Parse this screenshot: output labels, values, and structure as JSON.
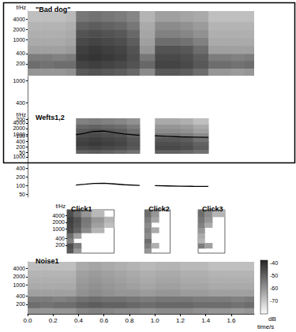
{
  "chart_data": [
    {
      "type": "heatmap",
      "title": "\"Bad dog\"",
      "y_label": "f/Hz",
      "log": "y",
      "tick_labels": "y",
      "xlim": [
        0,
        1.78
      ],
      "ylim": [
        90,
        7000
      ],
      "yticks": [
        200,
        400,
        1000,
        2000,
        4000
      ],
      "cells": {
        "t": [
          0,
          0.1,
          0.2,
          0.3,
          0.38,
          0.48,
          0.58,
          0.68,
          0.78,
          0.88,
          1.0,
          1.1,
          1.2,
          1.3,
          1.42,
          1.5,
          1.6,
          1.7,
          1.78
        ],
        "f": [
          90,
          150,
          250,
          400,
          700,
          1200,
          2000,
          3500,
          7000
        ],
        "db": [
          [
            -60,
            -60,
            -60,
            -59,
            -48,
            -47,
            -48,
            -49,
            -51,
            -58,
            -48,
            -48,
            -49,
            -52,
            -60,
            -60,
            -61,
            -60
          ],
          [
            -52,
            -53,
            -52,
            -52,
            -44,
            -43,
            -44,
            -45,
            -47,
            -51,
            -44,
            -44,
            -45,
            -48,
            -52,
            -52,
            -53,
            -52
          ],
          [
            -55,
            -55,
            -56,
            -55,
            -42,
            -41,
            -42,
            -43,
            -46,
            -54,
            -45,
            -45,
            -46,
            -49,
            -55,
            -55,
            -56,
            -55
          ],
          [
            -62,
            -62,
            -62,
            -61,
            -43,
            -42,
            -43,
            -44,
            -47,
            -60,
            -47,
            -47,
            -48,
            -52,
            -62,
            -62,
            -62,
            -62
          ],
          [
            -64,
            -64,
            -64,
            -63,
            -45,
            -44,
            -45,
            -46,
            -49,
            -62,
            -52,
            -52,
            -53,
            -56,
            -64,
            -64,
            -64,
            -64
          ],
          [
            -65,
            -65,
            -65,
            -64,
            -47,
            -46,
            -47,
            -48,
            -51,
            -63,
            -56,
            -56,
            -57,
            -59,
            -65,
            -65,
            -65,
            -65
          ],
          [
            -66,
            -66,
            -66,
            -65,
            -50,
            -49,
            -50,
            -51,
            -54,
            -64,
            -58,
            -58,
            -59,
            -61,
            -66,
            -66,
            -66,
            -66
          ],
          [
            -68,
            -68,
            -68,
            -67,
            -54,
            -53,
            -54,
            -55,
            -57,
            -66,
            -62,
            -62,
            -63,
            -64,
            -68,
            -68,
            -68,
            -68
          ]
        ]
      }
    },
    {
      "type": "line",
      "log": "y",
      "tick_labels": "y",
      "xlim": [
        0,
        1.78
      ],
      "ylim": [
        40,
        1200
      ],
      "yticks": [
        50,
        100,
        200,
        400,
        1000
      ],
      "series": [
        {
          "color": "#000000",
          "x": [
            0.38,
            0.45,
            0.52,
            0.6,
            0.68,
            0.76,
            0.88
          ],
          "values": [
            105,
            112,
            120,
            122,
            115,
            108,
            102
          ]
        },
        {
          "color": "#000000",
          "x": [
            1.0,
            1.1,
            1.2,
            1.3,
            1.42
          ],
          "values": [
            100,
            98,
            96,
            95,
            94
          ]
        }
      ]
    },
    {
      "type": "heatmap",
      "title": "Wefts1,2",
      "y_label": "f/Hz",
      "log": "y",
      "tick_labels": "y",
      "xlim": [
        0,
        1.78
      ],
      "ylim": [
        90,
        7000
      ],
      "yticks": [
        200,
        400,
        1000,
        2000,
        4000
      ],
      "cells": [
        {
          "t": [
            0.38,
            0.48,
            0.58,
            0.68,
            0.78,
            0.88
          ],
          "f": [
            90,
            150,
            250,
            400,
            700,
            1200,
            2000,
            3500,
            7000
          ],
          "db": [
            [
              -50,
              -49,
              -50,
              -51,
              -53
            ],
            [
              -45,
              -44,
              -45,
              -46,
              -48
            ],
            [
              -43,
              -42,
              -43,
              -44,
              -47
            ],
            [
              -44,
              -43,
              -44,
              -45,
              -48
            ],
            [
              -46,
              -45,
              -46,
              -47,
              -50
            ],
            [
              -48,
              -47,
              -48,
              -49,
              -52
            ],
            [
              -51,
              -50,
              -51,
              -52,
              -55
            ],
            [
              -56,
              -55,
              -56,
              -57,
              -59
            ]
          ]
        },
        {
          "t": [
            1.0,
            1.1,
            1.2,
            1.3,
            1.42
          ],
          "f": [
            90,
            150,
            250,
            400,
            700,
            1200,
            2000,
            3500,
            7000
          ],
          "db": [
            [
              -50,
              -50,
              -51,
              -53
            ],
            [
              -45,
              -45,
              -46,
              -49
            ],
            [
              -46,
              -46,
              -47,
              -50
            ],
            [
              -48,
              -48,
              -49,
              -53
            ],
            [
              -54,
              -54,
              -55,
              -58
            ],
            [
              -58,
              -58,
              -59,
              -62
            ],
            [
              -60,
              -60,
              -61,
              -64
            ],
            [
              -64,
              -64,
              -65,
              -68
            ]
          ]
        }
      ]
    },
    {
      "type": "line",
      "log": "y",
      "tick_labels": "y",
      "xlim": [
        0,
        1.78
      ],
      "ylim": [
        40,
        1200
      ],
      "yticks": [
        50,
        100,
        200,
        400,
        1000
      ],
      "series": [
        {
          "color": "#000000",
          "x": [
            0.38,
            0.45,
            0.52,
            0.6,
            0.68,
            0.76,
            0.88
          ],
          "values": [
            105,
            112,
            120,
            122,
            115,
            108,
            102
          ]
        },
        {
          "color": "#000000",
          "x": [
            1.0,
            1.1,
            1.2,
            1.3,
            1.42
          ],
          "values": [
            100,
            98,
            96,
            95,
            94
          ]
        }
      ]
    },
    {
      "type": "heatmap",
      "title": "Click1",
      "y_label": "f/Hz",
      "log": "y",
      "tick_labels": "y",
      "xlim": [
        0.31,
        0.68
      ],
      "ylim": [
        90,
        7000
      ],
      "yticks": [
        200,
        400,
        1000,
        2000,
        4000
      ],
      "cells": {
        "t": [
          0.31,
          0.36,
          0.42,
          0.5,
          0.6,
          0.68
        ],
        "f": [
          90,
          150,
          250,
          400,
          700,
          1200,
          2000,
          3500,
          7000
        ],
        "db": [
          [
            -48,
            -60,
            null,
            null,
            null
          ],
          [
            -46,
            -55,
            null,
            null,
            null
          ],
          [
            -56,
            null,
            null,
            null,
            null
          ],
          [
            -52,
            -62,
            null,
            null,
            null
          ],
          [
            -45,
            -50,
            -58,
            -66,
            null
          ],
          [
            -44,
            -48,
            -55,
            -62,
            -68
          ],
          [
            -43,
            -47,
            -54,
            -60,
            -66
          ],
          [
            -46,
            -52,
            -60,
            -67,
            null
          ]
        ]
      }
    },
    {
      "type": "heatmap",
      "title": "Click2",
      "log": "y",
      "tick_labels": false,
      "xlim": [
        0.92,
        1.12
      ],
      "ylim": [
        90,
        7000
      ],
      "cells": {
        "t": [
          0.92,
          0.97,
          1.03,
          1.12
        ],
        "f": [
          90,
          150,
          250,
          400,
          700,
          1200,
          2000,
          3500,
          7000
        ],
        "db": [
          [
            -60,
            null,
            null
          ],
          [
            -55,
            -65,
            null
          ],
          [
            -52,
            null,
            null
          ],
          [
            -58,
            null,
            null
          ],
          [
            -56,
            -64,
            null
          ],
          [
            -58,
            null,
            null
          ],
          [
            -55,
            -63,
            null
          ],
          [
            -52,
            -60,
            null
          ]
        ]
      }
    },
    {
      "type": "heatmap",
      "title": "Click3",
      "log": "y",
      "tick_labels": false,
      "xlim": [
        1.34,
        1.55
      ],
      "ylim": [
        90,
        7000
      ],
      "cells": {
        "t": [
          1.34,
          1.39,
          1.45,
          1.55
        ],
        "f": [
          90,
          150,
          250,
          400,
          700,
          1200,
          2000,
          3500,
          7000
        ],
        "db": [
          [
            null,
            null,
            null
          ],
          [
            -55,
            -62,
            null
          ],
          [
            -66,
            null,
            null
          ],
          [
            -64,
            null,
            null
          ],
          [
            -60,
            null,
            null
          ],
          [
            -56,
            -64,
            null
          ],
          [
            -54,
            -60,
            null
          ],
          [
            -52,
            -58,
            -66
          ]
        ]
      }
    },
    {
      "type": "heatmap",
      "title": "Noise1",
      "x_label": "time/s",
      "log": "y",
      "tick_labels": true,
      "xlim": [
        0,
        1.78
      ],
      "ylim": [
        90,
        7000
      ],
      "yticks": [
        200,
        400,
        1000,
        2000,
        4000
      ],
      "xticks": [
        {
          "value": 0,
          "label": "0.0"
        },
        0.2,
        0.4,
        0.6,
        0.8,
        {
          "value": 1,
          "label": "1.0"
        },
        1.2,
        1.4,
        1.6
      ],
      "cells": {
        "t": [
          0,
          0.1,
          0.2,
          0.3,
          0.38,
          0.48,
          0.58,
          0.68,
          0.78,
          0.88,
          1.0,
          1.1,
          1.2,
          1.3,
          1.42,
          1.5,
          1.6,
          1.7,
          1.78
        ],
        "f": [
          90,
          150,
          250,
          400,
          700,
          1200,
          2000,
          3500,
          7000
        ],
        "db": [
          [
            -60,
            -60,
            -60,
            -60,
            -57,
            -56,
            -57,
            -58,
            -58,
            -59,
            -58,
            -58,
            -58,
            -59,
            -60,
            -60,
            -61,
            -60
          ],
          [
            -52,
            -53,
            -52,
            -52,
            -50,
            -49,
            -50,
            -50,
            -51,
            -52,
            -51,
            -51,
            -51,
            -52,
            -52,
            -52,
            -53,
            -52
          ],
          [
            -55,
            -55,
            -56,
            -55,
            -53,
            -52,
            -53,
            -53,
            -54,
            -55,
            -54,
            -54,
            -54,
            -55,
            -55,
            -55,
            -56,
            -55
          ],
          [
            -62,
            -62,
            -62,
            -62,
            -59,
            -58,
            -59,
            -60,
            -60,
            -61,
            -60,
            -60,
            -61,
            -61,
            -62,
            -62,
            -62,
            -62
          ],
          [
            -64,
            -64,
            -64,
            -64,
            -60,
            -59,
            -60,
            -61,
            -62,
            -63,
            -62,
            -62,
            -63,
            -63,
            -64,
            -64,
            -64,
            -64
          ],
          [
            -65,
            -65,
            -65,
            -65,
            -61,
            -60,
            -61,
            -62,
            -63,
            -64,
            -63,
            -63,
            -64,
            -64,
            -65,
            -65,
            -65,
            -65
          ],
          [
            -66,
            -66,
            -66,
            -66,
            -62,
            -61,
            -62,
            -63,
            -64,
            -65,
            -64,
            -64,
            -65,
            -65,
            -66,
            -66,
            -66,
            -66
          ],
          [
            -68,
            -68,
            -68,
            -68,
            -64,
            -63,
            -64,
            -65,
            -66,
            -67,
            -66,
            -66,
            -67,
            -67,
            -68,
            -68,
            -68,
            -68
          ]
        ]
      },
      "colorbar": {
        "range": [
          -80,
          -38
        ],
        "ticks": [
          -40,
          -50,
          -60,
          -70
        ],
        "label": "dB"
      }
    }
  ]
}
